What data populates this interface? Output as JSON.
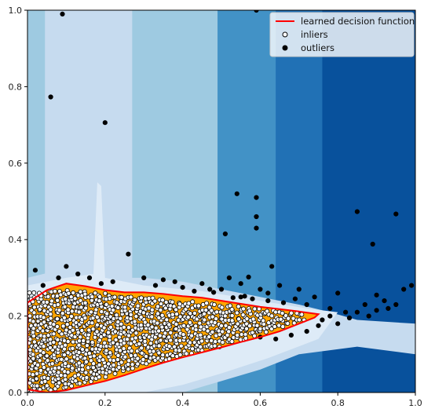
{
  "chart_data": {
    "type": "scatter",
    "title": "",
    "xlabel": "",
    "ylabel": "",
    "xlim": [
      0,
      1
    ],
    "ylim": [
      0,
      1
    ],
    "x_ticks": [
      "0.0",
      "0.2",
      "0.4",
      "0.6",
      "0.8",
      "1.0"
    ],
    "y_ticks": [
      "0.0",
      "0.2",
      "0.4",
      "0.6",
      "0.8",
      "1.0"
    ],
    "legend": {
      "placement": "top-right",
      "entries": [
        {
          "label": "learned decision function",
          "marker": "line",
          "color": "#ff0000"
        },
        {
          "label": "inliers",
          "marker": "open-circle",
          "color": "#000000"
        },
        {
          "label": "outliers",
          "marker": "filled-circle",
          "color": "#000000"
        }
      ]
    },
    "background_bands": [
      {
        "x_start": 0.0,
        "x_end": 0.045,
        "color": "#9ecae1"
      },
      {
        "x_start": 0.045,
        "x_end": 0.27,
        "color": "#c6dbef"
      },
      {
        "x_start": 0.27,
        "x_end": 0.49,
        "color": "#9ecae1"
      },
      {
        "x_start": 0.49,
        "x_end": 0.64,
        "color": "#4292c6"
      },
      {
        "x_start": 0.64,
        "x_end": 0.76,
        "color": "#2171b5"
      },
      {
        "x_start": 0.76,
        "x_end": 1.0,
        "color": "#08519c"
      }
    ],
    "decision_boundary": [
      [
        0.0,
        0.235
      ],
      [
        0.05,
        0.268
      ],
      [
        0.1,
        0.285
      ],
      [
        0.15,
        0.278
      ],
      [
        0.2,
        0.268
      ],
      [
        0.25,
        0.262
      ],
      [
        0.3,
        0.262
      ],
      [
        0.35,
        0.258
      ],
      [
        0.4,
        0.252
      ],
      [
        0.45,
        0.248
      ],
      [
        0.5,
        0.24
      ],
      [
        0.55,
        0.232
      ],
      [
        0.6,
        0.224
      ],
      [
        0.65,
        0.218
      ],
      [
        0.7,
        0.212
      ],
      [
        0.75,
        0.205
      ],
      [
        0.74,
        0.196
      ],
      [
        0.7,
        0.18
      ],
      [
        0.65,
        0.16
      ],
      [
        0.6,
        0.145
      ],
      [
        0.55,
        0.132
      ],
      [
        0.5,
        0.118
      ],
      [
        0.45,
        0.105
      ],
      [
        0.4,
        0.092
      ],
      [
        0.35,
        0.078
      ],
      [
        0.3,
        0.062
      ],
      [
        0.25,
        0.045
      ],
      [
        0.2,
        0.03
      ],
      [
        0.15,
        0.018
      ],
      [
        0.1,
        0.006
      ],
      [
        0.05,
        0.0
      ],
      [
        0.0,
        0.008
      ]
    ],
    "inlier_band": {
      "x_min": 0.0,
      "x_max": 0.72,
      "upper": [
        [
          0.0,
          0.26
        ],
        [
          0.1,
          0.27
        ],
        [
          0.3,
          0.25
        ],
        [
          0.5,
          0.23
        ],
        [
          0.72,
          0.205
        ]
      ],
      "lower": [
        [
          0.0,
          0.0
        ],
        [
          0.1,
          0.01
        ],
        [
          0.3,
          0.07
        ],
        [
          0.5,
          0.12
        ],
        [
          0.72,
          0.19
        ]
      ]
    },
    "outliers": [
      [
        0.09,
        0.99
      ],
      [
        0.59,
        1.0
      ],
      [
        0.06,
        0.773
      ],
      [
        0.2,
        0.706
      ],
      [
        0.54,
        0.52
      ],
      [
        0.59,
        0.51
      ],
      [
        0.59,
        0.46
      ],
      [
        0.59,
        0.43
      ],
      [
        0.51,
        0.415
      ],
      [
        0.85,
        0.473
      ],
      [
        0.95,
        0.467
      ],
      [
        0.89,
        0.388
      ],
      [
        0.26,
        0.362
      ],
      [
        0.57,
        0.302
      ],
      [
        0.56,
        0.252
      ],
      [
        0.52,
        0.3
      ],
      [
        0.5,
        0.27
      ],
      [
        0.6,
        0.27
      ],
      [
        0.63,
        0.33
      ],
      [
        0.45,
        0.285
      ],
      [
        0.35,
        0.295
      ],
      [
        0.3,
        0.3
      ],
      [
        0.1,
        0.33
      ],
      [
        0.08,
        0.3
      ],
      [
        0.16,
        0.3
      ],
      [
        0.22,
        0.29
      ],
      [
        0.4,
        0.275
      ],
      [
        0.47,
        0.27
      ],
      [
        0.55,
        0.285
      ],
      [
        0.65,
        0.28
      ],
      [
        0.7,
        0.27
      ],
      [
        0.8,
        0.26
      ],
      [
        0.9,
        0.255
      ],
      [
        0.97,
        0.27
      ],
      [
        0.99,
        0.28
      ],
      [
        0.95,
        0.23
      ],
      [
        0.87,
        0.23
      ],
      [
        0.82,
        0.21
      ],
      [
        0.78,
        0.2
      ],
      [
        0.76,
        0.19
      ],
      [
        0.8,
        0.18
      ],
      [
        0.85,
        0.21
      ],
      [
        0.9,
        0.215
      ],
      [
        0.93,
        0.22
      ],
      [
        0.72,
        0.16
      ],
      [
        0.68,
        0.15
      ],
      [
        0.64,
        0.14
      ],
      [
        0.6,
        0.145
      ],
      [
        0.75,
        0.175
      ],
      [
        0.83,
        0.195
      ],
      [
        0.88,
        0.2
      ],
      [
        0.78,
        0.22
      ],
      [
        0.72,
        0.23
      ],
      [
        0.66,
        0.235
      ],
      [
        0.62,
        0.24
      ],
      [
        0.58,
        0.245
      ],
      [
        0.55,
        0.25
      ],
      [
        0.53,
        0.248
      ],
      [
        0.69,
        0.245
      ],
      [
        0.74,
        0.25
      ],
      [
        0.02,
        0.32
      ],
      [
        0.04,
        0.28
      ],
      [
        0.13,
        0.31
      ],
      [
        0.19,
        0.285
      ],
      [
        0.33,
        0.28
      ],
      [
        0.38,
        0.29
      ],
      [
        0.43,
        0.265
      ],
      [
        0.48,
        0.262
      ],
      [
        0.62,
        0.26
      ],
      [
        0.92,
        0.24
      ]
    ]
  }
}
